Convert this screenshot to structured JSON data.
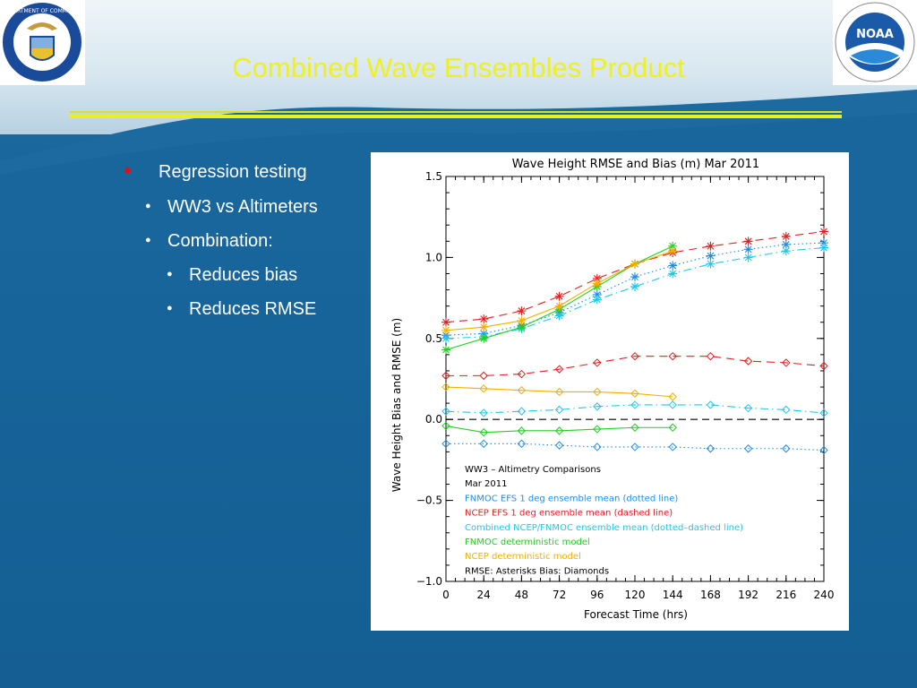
{
  "slide": {
    "title": "Combined Wave Ensembles Product",
    "bullets": [
      {
        "level": 1,
        "text": "Regression testing"
      },
      {
        "level": 2,
        "text": "WW3 vs Altimeters"
      },
      {
        "level": 2,
        "text": "Combination:"
      },
      {
        "level": 3,
        "text": "Reduces bias"
      },
      {
        "level": 3,
        "text": "Reduces RMSE"
      }
    ],
    "logos": {
      "left": "Department of Commerce seal",
      "right": "NOAA logo"
    },
    "colors": {
      "title": "#f0f020",
      "rule": "#d8e020",
      "bullet_marker": "#e01010"
    }
  },
  "chart_data": {
    "type": "line",
    "title": "Wave Height RMSE and Bias (m) Mar 2011",
    "xlabel": "Forecast Time (hrs)",
    "ylabel": "Wave Height Bias and RMSE (m)",
    "xlim": [
      0,
      240
    ],
    "ylim": [
      -1.0,
      1.5
    ],
    "xticks": [
      0,
      24,
      48,
      72,
      96,
      120,
      144,
      168,
      192,
      216,
      240
    ],
    "yticks": [
      -1.0,
      -0.5,
      0.0,
      0.5,
      1.0,
      1.5
    ],
    "ytick_labels": [
      "−1.0",
      "−0.5",
      "0.0",
      "0.5",
      "1.0",
      "1.5"
    ],
    "grid": false,
    "zero_line": "dashed",
    "legend_text": [
      {
        "text": "WW3 – Altimetry Comparisons",
        "color": "#000000"
      },
      {
        "text": "Mar 2011",
        "color": "#000000"
      },
      {
        "text": "FNMOC EFS 1 deg ensemble mean (dotted line)",
        "color": "#1e8ce6"
      },
      {
        "text": "NCEP EFS 1 deg ensemble mean (dashed line)",
        "color": "#e02020"
      },
      {
        "text": "Combined NCEP/FNMOC ensemble mean  (dotted–dashed line)",
        "color": "#20c8e8"
      },
      {
        "text": "FNMOC deterministic model",
        "color": "#20d020"
      },
      {
        "text": "NCEP deterministic model",
        "color": "#f0b000"
      },
      {
        "text": "RMSE: Asterisks    Bias: Diamonds",
        "color": "#000000"
      }
    ],
    "series": [
      {
        "model": "NCEP EFS 1 deg ensemble mean",
        "metric": "RMSE",
        "color": "#e02020",
        "dash": "dashed",
        "marker": "asterisk",
        "x": [
          0,
          24,
          48,
          72,
          96,
          120,
          144,
          168,
          192,
          216,
          240
        ],
        "y": [
          0.6,
          0.62,
          0.67,
          0.76,
          0.87,
          0.96,
          1.03,
          1.07,
          1.1,
          1.13,
          1.16
        ]
      },
      {
        "model": "FNMOC EFS 1 deg ensemble mean",
        "metric": "RMSE",
        "color": "#1e8ce6",
        "dash": "dotted",
        "marker": "asterisk",
        "x": [
          0,
          24,
          48,
          72,
          96,
          120,
          144,
          168,
          192,
          216,
          240
        ],
        "y": [
          0.52,
          0.53,
          0.58,
          0.66,
          0.77,
          0.88,
          0.95,
          1.01,
          1.05,
          1.08,
          1.09
        ]
      },
      {
        "model": "Combined NCEP/FNMOC ensemble mean",
        "metric": "RMSE",
        "color": "#20c8e8",
        "dash": "dotdash",
        "marker": "asterisk",
        "x": [
          0,
          24,
          48,
          72,
          96,
          120,
          144,
          168,
          192,
          216,
          240
        ],
        "y": [
          0.5,
          0.51,
          0.56,
          0.64,
          0.74,
          0.82,
          0.9,
          0.96,
          1.0,
          1.04,
          1.06
        ]
      },
      {
        "model": "FNMOC deterministic model",
        "metric": "RMSE",
        "color": "#20d020",
        "dash": "solid",
        "marker": "asterisk",
        "x": [
          0,
          24,
          48,
          72,
          96,
          120,
          144
        ],
        "y": [
          0.43,
          0.5,
          0.57,
          0.68,
          0.82,
          0.96,
          1.07
        ]
      },
      {
        "model": "NCEP deterministic model",
        "metric": "RMSE",
        "color": "#f0b000",
        "dash": "solid",
        "marker": "asterisk",
        "x": [
          0,
          24,
          48,
          72,
          96,
          120,
          144
        ],
        "y": [
          0.55,
          0.57,
          0.61,
          0.7,
          0.84,
          0.96,
          1.04
        ]
      },
      {
        "model": "NCEP EFS 1 deg ensemble mean",
        "metric": "Bias",
        "color": "#e02020",
        "dash": "dashed",
        "marker": "diamond",
        "x": [
          0,
          24,
          48,
          72,
          96,
          120,
          144,
          168,
          192,
          216,
          240
        ],
        "y": [
          0.27,
          0.27,
          0.28,
          0.31,
          0.35,
          0.39,
          0.39,
          0.39,
          0.36,
          0.35,
          0.33
        ]
      },
      {
        "model": "NCEP deterministic model",
        "metric": "Bias",
        "color": "#f0b000",
        "dash": "solid",
        "marker": "diamond",
        "x": [
          0,
          24,
          48,
          72,
          96,
          120,
          144
        ],
        "y": [
          0.2,
          0.19,
          0.18,
          0.17,
          0.17,
          0.16,
          0.14
        ]
      },
      {
        "model": "Combined NCEP/FNMOC ensemble mean",
        "metric": "Bias",
        "color": "#20c8e8",
        "dash": "dotdash",
        "marker": "diamond",
        "x": [
          0,
          24,
          48,
          72,
          96,
          120,
          144,
          168,
          192,
          216,
          240
        ],
        "y": [
          0.05,
          0.04,
          0.05,
          0.06,
          0.08,
          0.09,
          0.09,
          0.09,
          0.07,
          0.06,
          0.04
        ]
      },
      {
        "model": "FNMOC deterministic model",
        "metric": "Bias",
        "color": "#20d020",
        "dash": "solid",
        "marker": "diamond",
        "x": [
          0,
          24,
          48,
          72,
          96,
          120,
          144
        ],
        "y": [
          -0.04,
          -0.08,
          -0.07,
          -0.07,
          -0.06,
          -0.05,
          -0.05
        ]
      },
      {
        "model": "FNMOC EFS 1 deg ensemble mean",
        "metric": "Bias",
        "color": "#1e8ce6",
        "dash": "dotted",
        "marker": "diamond",
        "x": [
          0,
          24,
          48,
          72,
          96,
          120,
          144,
          168,
          192,
          216,
          240
        ],
        "y": [
          -0.15,
          -0.15,
          -0.15,
          -0.16,
          -0.17,
          -0.17,
          -0.17,
          -0.18,
          -0.18,
          -0.18,
          -0.19
        ]
      }
    ]
  }
}
